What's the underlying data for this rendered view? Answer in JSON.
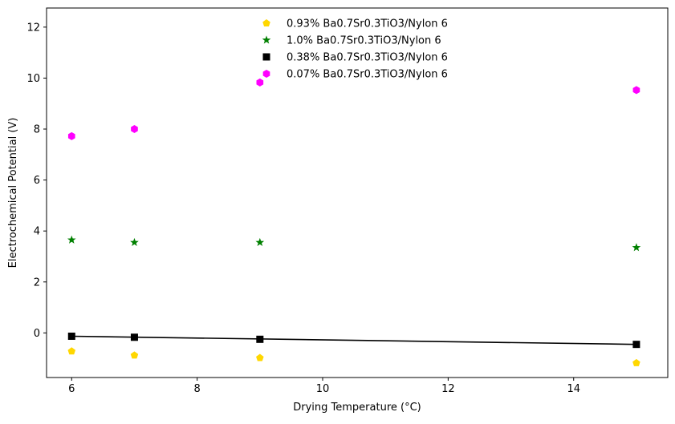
{
  "chart_data": {
    "type": "scatter",
    "title": "",
    "xlabel": "Drying Temperature (°C)",
    "ylabel": "Electrochemical Potential (V)",
    "xlim": [
      5.6,
      15.5
    ],
    "ylim": [
      -1.75,
      12.75
    ],
    "xticks": [
      6,
      8,
      10,
      12,
      14
    ],
    "yticks": [
      0,
      2,
      4,
      6,
      8,
      10,
      12
    ],
    "grid": false,
    "legend_position": "top-center",
    "series": [
      {
        "name": "0.93% Ba0.7Sr0.3TiO3/Nylon 6",
        "marker": "pentagon",
        "color": "#FFD700",
        "x": [
          6,
          7,
          9,
          15
        ],
        "y": [
          -0.72,
          -0.88,
          -0.98,
          -1.18
        ]
      },
      {
        "name": "1.0% Ba0.7Sr0.3TiO3/Nylon 6",
        "marker": "star",
        "color": "#008000",
        "x": [
          6,
          7,
          9,
          15
        ],
        "y": [
          3.65,
          3.55,
          3.55,
          3.35
        ]
      },
      {
        "name": "0.38% Ba0.7Sr0.3TiO3/Nylon 6",
        "marker": "square",
        "color": "#000000",
        "x": [
          6,
          7,
          9,
          15
        ],
        "y": [
          -0.13,
          -0.17,
          -0.25,
          -0.45
        ]
      },
      {
        "name": "0.07% Ba0.7Sr0.3TiO3/Nylon 6",
        "marker": "hexagon",
        "color": "#FF00FF",
        "x": [
          6,
          7,
          9,
          15
        ],
        "y": [
          7.72,
          8.0,
          9.83,
          9.53
        ]
      }
    ],
    "fit_line": {
      "color": "#000000",
      "x": [
        6,
        15
      ],
      "y": [
        -0.13,
        -0.45
      ]
    }
  }
}
